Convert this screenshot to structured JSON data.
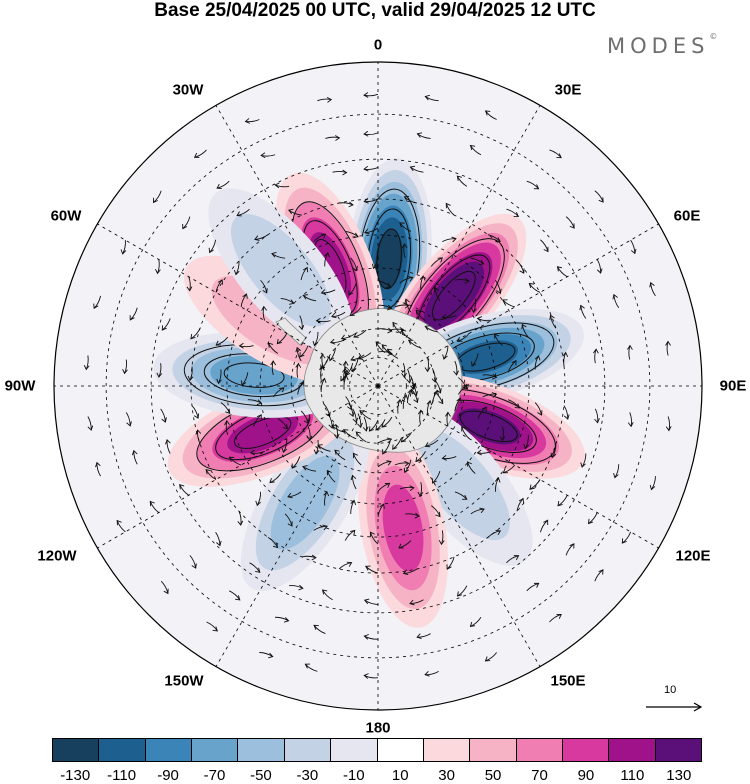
{
  "title": "Base 25/04/2025 00 UTC, valid 29/04/2025 12 UTC",
  "logo": {
    "text": "MODES",
    "mark": "©"
  },
  "longitude_labels": {
    "lon_0": "0",
    "lon_30e": "30E",
    "lon_60e": "60E",
    "lon_90e": "90E",
    "lon_120e": "120E",
    "lon_150e": "150E",
    "lon_180": "180",
    "lon_150w": "150W",
    "lon_120w": "120W",
    "lon_90w": "90W",
    "lon_60w": "60W",
    "lon_30w": "30W"
  },
  "reference_vector": {
    "label": "10"
  },
  "colorbar": {
    "colors": [
      "#16405e",
      "#1d5f8f",
      "#3a84b8",
      "#68a3cc",
      "#9bbfdd",
      "#c4d2e6",
      "#e6e6f0",
      "#ffffff",
      "#fbd9dc",
      "#f6b3c6",
      "#f07eb2",
      "#d7399f",
      "#a0128a",
      "#5b0f78"
    ],
    "tick_labels": [
      "-130",
      "-110",
      "-90",
      "-70",
      "-50",
      "-30",
      "-10",
      "10",
      "30",
      "50",
      "70",
      "90",
      "110",
      "130"
    ]
  },
  "anomaly_cells": [
    {
      "lon": 5,
      "lat": -47,
      "value": -130
    },
    {
      "lon": 40,
      "lat": -50,
      "value": 130
    },
    {
      "lon": 75,
      "lat": -52,
      "value": -120
    },
    {
      "lon": 110,
      "lat": -50,
      "value": 110
    },
    {
      "lon": 140,
      "lat": -47,
      "value": -45
    },
    {
      "lon": 170,
      "lat": -42,
      "value": 70
    },
    {
      "lon": -148,
      "lat": -44,
      "value": -60
    },
    {
      "lon": -112,
      "lat": -48,
      "value": 90
    },
    {
      "lon": -85,
      "lat": -48,
      "value": -80
    },
    {
      "lon": -58,
      "lat": -48,
      "value": 45
    },
    {
      "lon": -22,
      "lat": -47,
      "value": 90
    },
    {
      "lon": -40,
      "lat": -40,
      "value": -35
    }
  ]
}
